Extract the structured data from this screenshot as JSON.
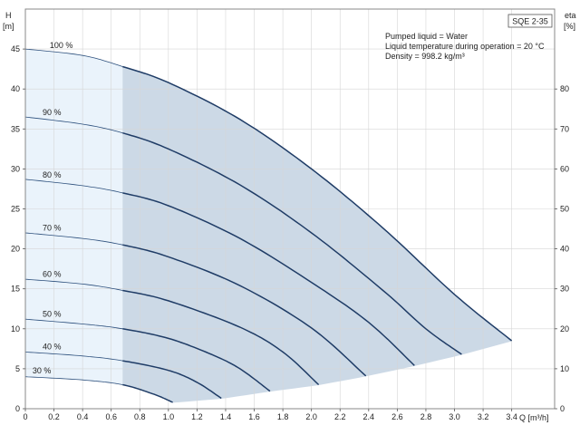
{
  "chart_data": {
    "type": "line",
    "model": "SQE 2-35",
    "xlabel": "Q [m³/h]",
    "ylabel_left_name": "H",
    "ylabel_left_unit": "[m]",
    "ylabel_right_name": "eta",
    "ylabel_right_unit": "[%]",
    "xlim": [
      0,
      3.7
    ],
    "ylim_left": [
      0,
      50
    ],
    "ylim_right": [
      0,
      100
    ],
    "x_ticks": [
      0,
      0.2,
      0.4,
      0.6,
      0.8,
      1.0,
      1.2,
      1.4,
      1.6,
      1.8,
      2.0,
      2.2,
      2.4,
      2.6,
      2.8,
      3.0,
      3.2,
      3.4
    ],
    "x_tick_labels": [
      "0",
      "0.2",
      "0.4",
      "0.6",
      "0.8",
      "1.0",
      "1.2",
      "1.4",
      "1.6",
      "1.8",
      "2.0",
      "2.2",
      "2.4",
      "2.6",
      "2.8",
      "3.0",
      "3.2",
      "3.4"
    ],
    "y_left_ticks": [
      0,
      5,
      10,
      15,
      20,
      25,
      30,
      35,
      40,
      45
    ],
    "y_left_tick_labels": [
      "0",
      "5",
      "10",
      "15",
      "20",
      "25",
      "30",
      "35",
      "40",
      "45"
    ],
    "y_right_ticks": [
      0,
      10,
      20,
      30,
      40,
      50,
      60,
      70,
      80
    ],
    "y_right_tick_labels": [
      "0",
      "10",
      "20",
      "30",
      "40",
      "50",
      "60",
      "70",
      "80"
    ],
    "grid": true,
    "info": [
      "Pumped liquid = Water",
      "Liquid temperature during operation = 20 °C",
      "Density = 998.2 kg/m³"
    ],
    "min_flow_boundary_q": 0.68,
    "series": [
      {
        "name": "100 %",
        "x": [
          0,
          0.4,
          0.68,
          1.0,
          1.5,
          2.0,
          2.5,
          3.0,
          3.4
        ],
        "y": [
          45.0,
          44.2,
          42.8,
          40.8,
          36.2,
          30.0,
          22.6,
          14.3,
          8.5
        ]
      },
      {
        "name": "90 %",
        "x": [
          0,
          0.4,
          0.68,
          1.0,
          1.5,
          2.0,
          2.5,
          2.8,
          3.05
        ],
        "y": [
          36.5,
          35.6,
          34.5,
          32.5,
          28.0,
          22.0,
          14.8,
          10.0,
          6.8
        ]
      },
      {
        "name": "80 %",
        "x": [
          0,
          0.4,
          0.68,
          1.0,
          1.5,
          2.0,
          2.4,
          2.72
        ],
        "y": [
          28.7,
          27.9,
          27.0,
          25.4,
          21.3,
          15.8,
          10.8,
          5.4
        ]
      },
      {
        "name": "70 %",
        "x": [
          0,
          0.4,
          0.68,
          1.0,
          1.5,
          2.0,
          2.38
        ],
        "y": [
          22.0,
          21.3,
          20.5,
          19.0,
          15.4,
          10.1,
          4.1
        ]
      },
      {
        "name": "60 %",
        "x": [
          0,
          0.4,
          0.68,
          1.0,
          1.5,
          1.8,
          2.05
        ],
        "y": [
          16.2,
          15.6,
          14.8,
          13.5,
          10.2,
          7.1,
          3.0
        ]
      },
      {
        "name": "50 %",
        "x": [
          0,
          0.4,
          0.68,
          1.0,
          1.3,
          1.5,
          1.71
        ],
        "y": [
          11.2,
          10.6,
          10.0,
          8.8,
          6.8,
          5.0,
          2.2
        ]
      },
      {
        "name": "40 %",
        "x": [
          0,
          0.4,
          0.68,
          1.0,
          1.2,
          1.37
        ],
        "y": [
          7.1,
          6.6,
          6.0,
          4.8,
          3.3,
          1.3
        ]
      },
      {
        "name": "30 %",
        "x": [
          0,
          0.4,
          0.68,
          0.9,
          1.03
        ],
        "y": [
          4.0,
          3.6,
          3.0,
          1.8,
          0.8
        ]
      }
    ]
  }
}
